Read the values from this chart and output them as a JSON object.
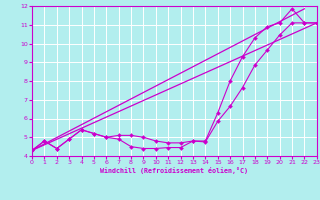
{
  "xlabel": "Windchill (Refroidissement éolien,°C)",
  "xlim": [
    0,
    23
  ],
  "ylim": [
    4,
    12
  ],
  "xticks": [
    0,
    1,
    2,
    3,
    4,
    5,
    6,
    7,
    8,
    9,
    10,
    11,
    12,
    13,
    14,
    15,
    16,
    17,
    18,
    19,
    20,
    21,
    22,
    23
  ],
  "yticks": [
    4,
    5,
    6,
    7,
    8,
    9,
    10,
    11,
    12
  ],
  "background_color": "#b2eeee",
  "grid_color": "#ffffff",
  "line_color": "#cc00cc",
  "line1_x": [
    0,
    1,
    2,
    3,
    4,
    5,
    6,
    7,
    8,
    9,
    10,
    11,
    12,
    13,
    14,
    15,
    16,
    17,
    18,
    19,
    20,
    21,
    22,
    23
  ],
  "line1_y": [
    4.3,
    4.8,
    4.4,
    4.9,
    5.4,
    5.2,
    5.0,
    4.9,
    4.5,
    4.4,
    4.4,
    4.45,
    4.45,
    4.8,
    4.75,
    5.85,
    6.65,
    7.65,
    8.85,
    9.65,
    10.45,
    11.1,
    11.1,
    11.1
  ],
  "line2_x": [
    0,
    1,
    2,
    3,
    4,
    5,
    6,
    7,
    8,
    9,
    10,
    11,
    12,
    13,
    14,
    15,
    16,
    17,
    18,
    19,
    20,
    21,
    22,
    23
  ],
  "line2_y": [
    4.3,
    4.8,
    4.4,
    4.9,
    5.4,
    5.2,
    5.0,
    5.1,
    5.1,
    5.0,
    4.8,
    4.7,
    4.7,
    4.8,
    4.8,
    6.3,
    8.0,
    9.3,
    10.3,
    10.9,
    11.1,
    11.85,
    11.1,
    11.1
  ],
  "line3_x": [
    0,
    22
  ],
  "line3_y": [
    4.3,
    11.85
  ],
  "line4_x": [
    0,
    23
  ],
  "line4_y": [
    4.3,
    11.1
  ]
}
